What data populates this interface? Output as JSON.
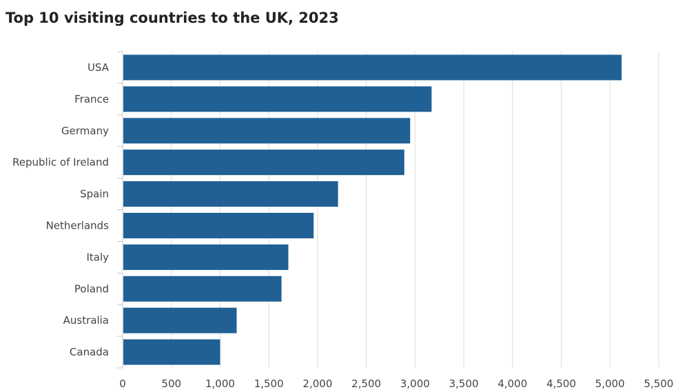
{
  "chart_data": {
    "type": "bar",
    "orientation": "horizontal",
    "title": "Top 10 visiting countries to the UK, 2023",
    "xlabel": "",
    "ylabel": "",
    "categories": [
      "USA",
      "France",
      "Germany",
      "Republic of Ireland",
      "Spain",
      "Netherlands",
      "Italy",
      "Poland",
      "Australia",
      "Canada"
    ],
    "values": [
      5120,
      3170,
      2950,
      2890,
      2210,
      1960,
      1700,
      1630,
      1170,
      1000
    ],
    "xlim": [
      0,
      5500
    ],
    "xticks": [
      0,
      500,
      1000,
      1500,
      2000,
      2500,
      3000,
      3500,
      4000,
      4500,
      5000,
      5500
    ],
    "xtick_labels": [
      "0",
      "500",
      "1,000",
      "1,500",
      "2,000",
      "2,500",
      "3,000",
      "3,500",
      "4,000",
      "4,500",
      "5,000",
      "5,500"
    ],
    "grid": "vertical",
    "legend": "none",
    "bar_color": "#206095",
    "grid_color": "#dcdcdc",
    "axis_color": "#c7c7c7"
  }
}
